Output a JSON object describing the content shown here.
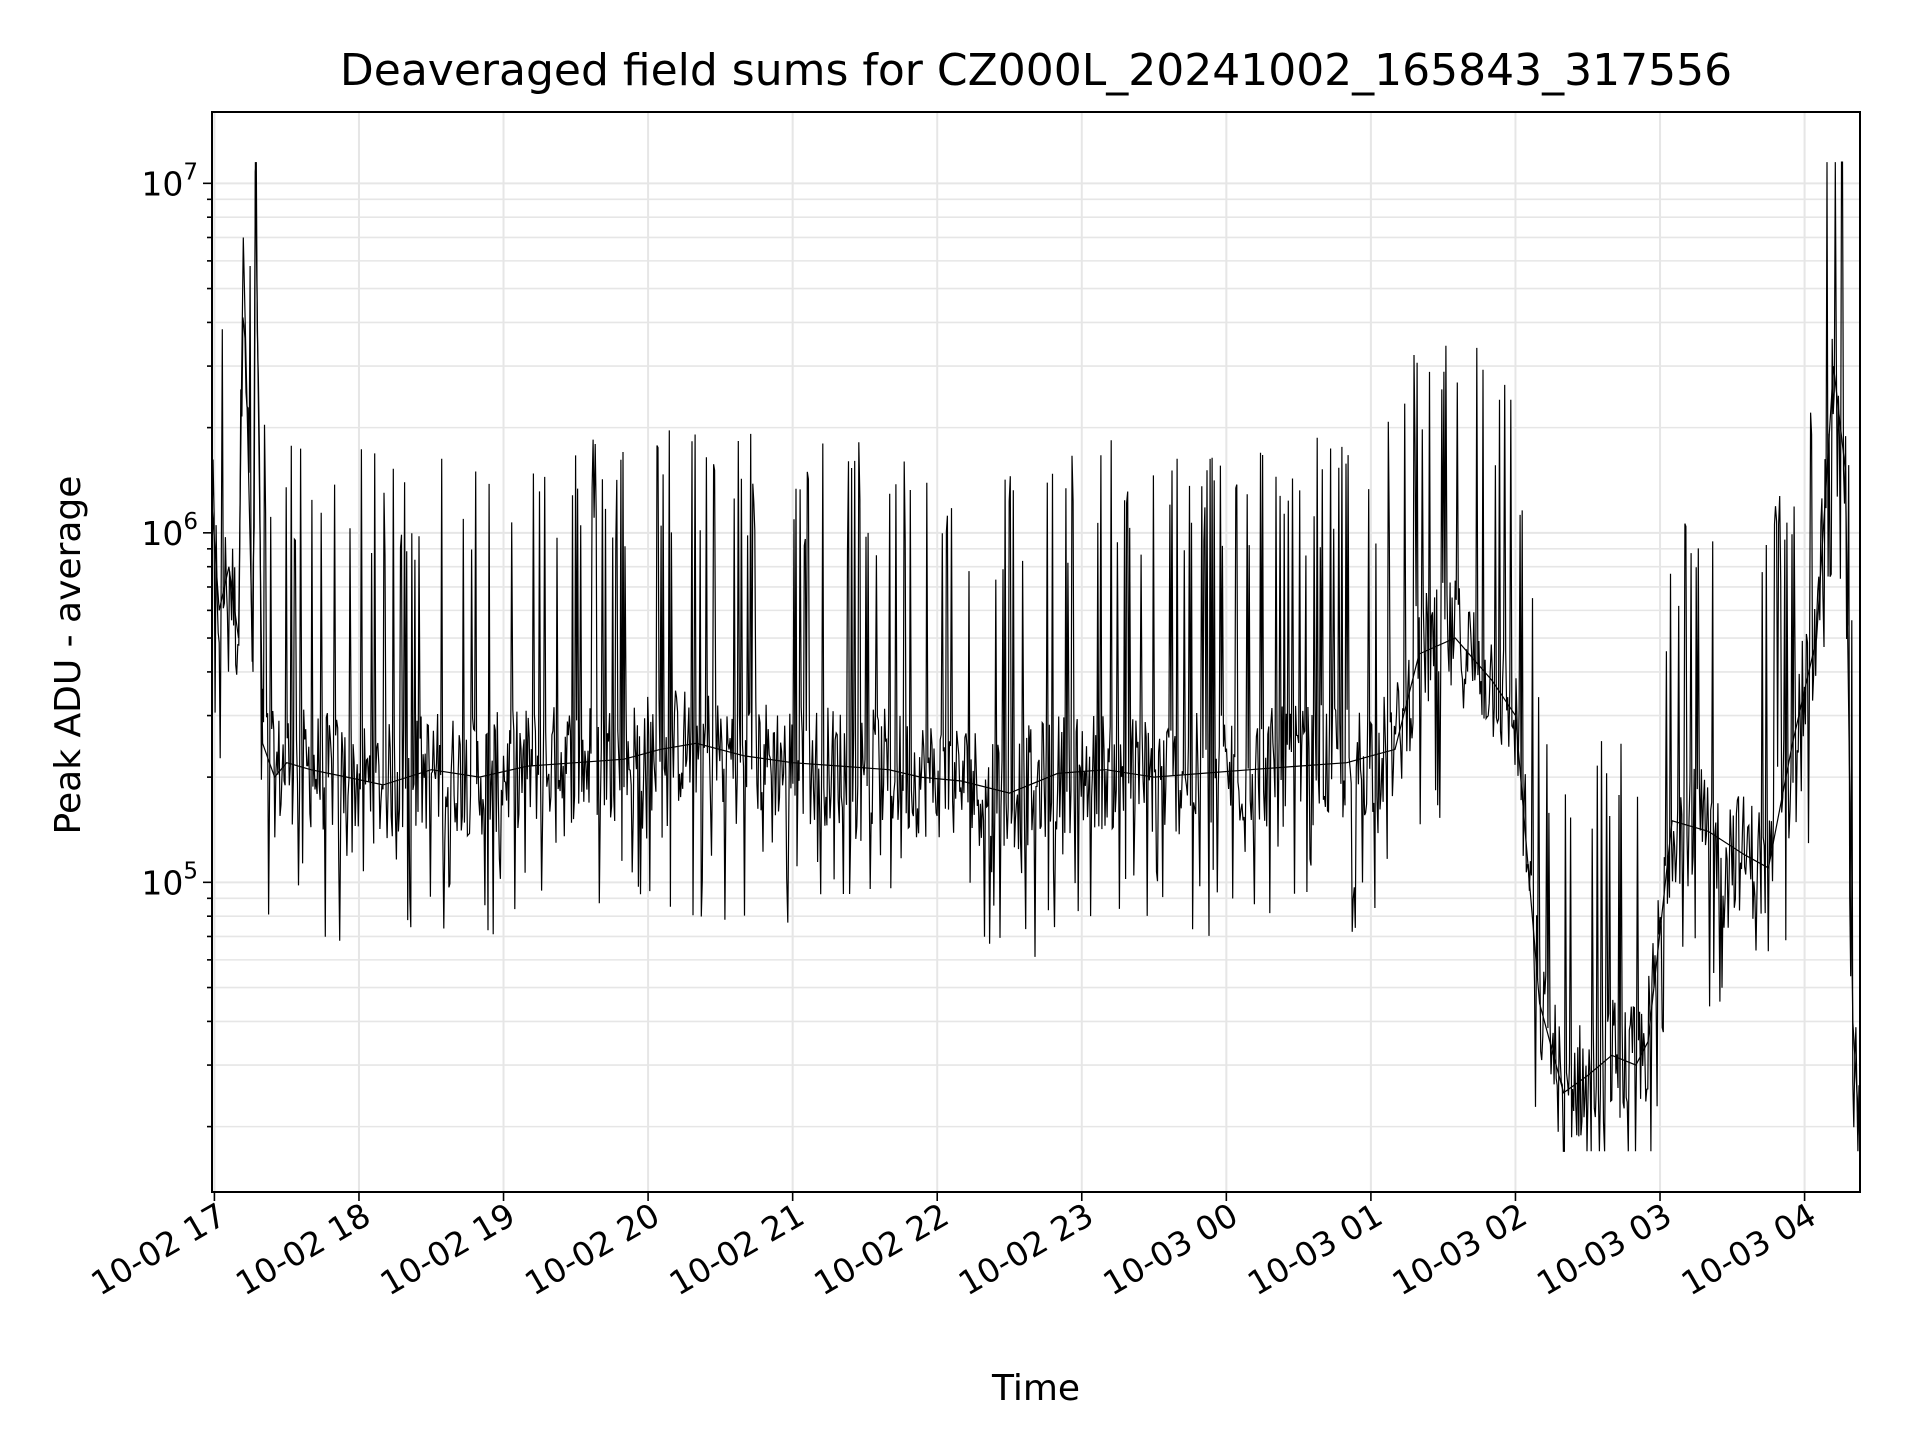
{
  "chart_data": {
    "type": "line",
    "title": "Deaveraged field sums for CZ000L_20241002_165843_317556",
    "xlabel": "Time",
    "ylabel": "Peak ADU - average",
    "yscale": "log",
    "ylim": [
      13000,
      16000000
    ],
    "xlim": [
      "2024-10-02 16:59",
      "2024-10-03 04:23"
    ],
    "grid": true,
    "grid_minor_y": true,
    "line_color": "#000000",
    "x_ticks": [
      "2024-10-02 17:00",
      "2024-10-02 18:00",
      "2024-10-02 19:00",
      "2024-10-02 20:00",
      "2024-10-02 21:00",
      "2024-10-02 22:00",
      "2024-10-02 23:00",
      "2024-10-03 00:00",
      "2024-10-03 01:00",
      "2024-10-03 02:00",
      "2024-10-03 03:00",
      "2024-10-03 04:00"
    ],
    "x_tick_labels": [
      "10-02 17",
      "10-02 18",
      "10-02 19",
      "10-02 20",
      "10-02 21",
      "10-02 22",
      "10-02 23",
      "10-03 00",
      "10-03 01",
      "10-03 02",
      "10-03 03",
      "10-03 04"
    ],
    "y_ticks": [
      100000,
      1000000,
      10000000
    ],
    "y_tick_labels": [
      {
        "base": "10",
        "exp": "5"
      },
      {
        "base": "10",
        "exp": "6"
      },
      {
        "base": "10",
        "exp": "7"
      }
    ],
    "series": [
      {
        "x": [
          "2024-10-02 16:59",
          "2024-10-02 17:02",
          "2024-10-02 17:06",
          "2024-10-02 17:10",
          "2024-10-02 17:12",
          "2024-10-02 17:16",
          "2024-10-02 17:17",
          "2024-10-02 17:20",
          "2024-10-02 17:25",
          "2024-10-02 17:30",
          "2024-10-02 17:40",
          "2024-10-02 17:55",
          "2024-10-02 18:10",
          "2024-10-02 18:30",
          "2024-10-02 18:50",
          "2024-10-02 19:10",
          "2024-10-02 19:30",
          "2024-10-02 19:50",
          "2024-10-02 20:05",
          "2024-10-02 20:20",
          "2024-10-02 20:40",
          "2024-10-02 21:00",
          "2024-10-02 21:20",
          "2024-10-02 21:40",
          "2024-10-02 21:53",
          "2024-10-02 22:10",
          "2024-10-02 22:30",
          "2024-10-02 22:50",
          "2024-10-02 23:10",
          "2024-10-02 23:30",
          "2024-10-02 23:50",
          "2024-10-03 00:10",
          "2024-10-03 00:30",
          "2024-10-03 00:50",
          "2024-10-03 01:00",
          "2024-10-03 01:10",
          "2024-10-03 01:20",
          "2024-10-03 01:35",
          "2024-10-03 01:50",
          "2024-10-03 02:00",
          "2024-10-03 02:10",
          "2024-10-03 02:20",
          "2024-10-03 02:30",
          "2024-10-03 02:40",
          "2024-10-03 02:50",
          "2024-10-03 02:55",
          "2024-10-03 03:05",
          "2024-10-03 03:20",
          "2024-10-03 03:35",
          "2024-10-03 03:45",
          "2024-10-03 03:55",
          "2024-10-03 04:05",
          "2024-10-03 04:12",
          "2024-10-03 04:17",
          "2024-10-03 04:20",
          "2024-10-03 04:23"
        ],
        "y": [
          1200000,
          600000,
          800000,
          500000,
          7000000,
          400000,
          11500000,
          250000,
          200000,
          220000,
          210000,
          200000,
          190000,
          210000,
          200000,
          215000,
          220000,
          225000,
          240000,
          250000,
          230000,
          220000,
          215000,
          210000,
          200000,
          195000,
          180000,
          205000,
          210000,
          200000,
          205000,
          210000,
          215000,
          220000,
          230000,
          240000,
          450000,
          500000,
          380000,
          300000,
          45000,
          25000,
          28000,
          32000,
          30000,
          35000,
          150000,
          140000,
          120000,
          110000,
          250000,
          500000,
          3000000,
          1500000,
          40000,
          18000
        ],
        "min_y": 17000,
        "max_y": 11500000
      }
    ]
  }
}
